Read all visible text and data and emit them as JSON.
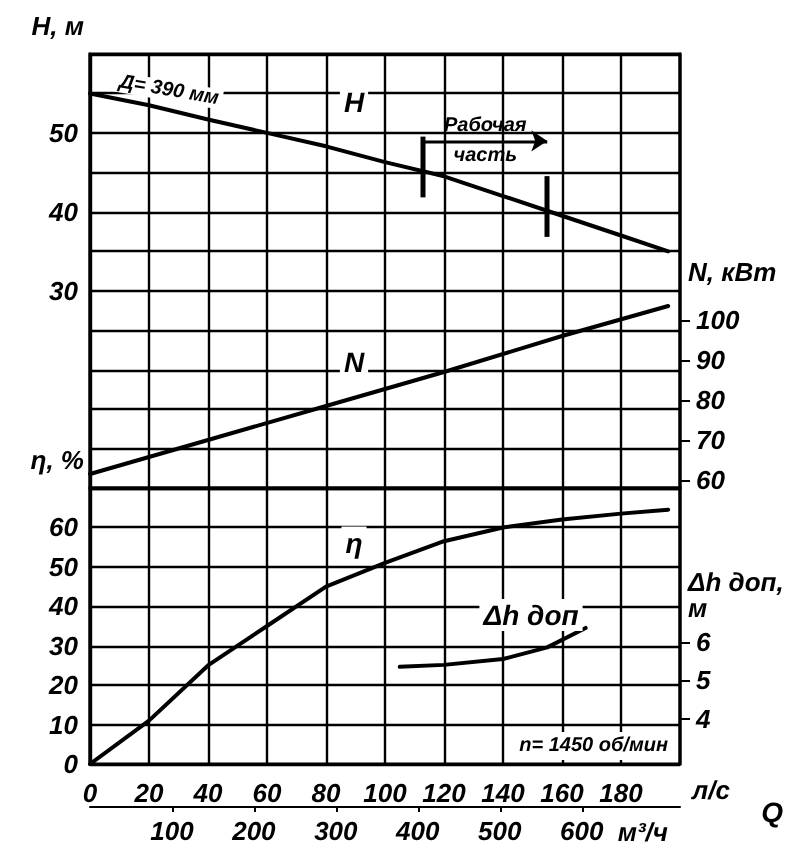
{
  "chart_data": [
    {
      "type": "line",
      "ylabel": "H, м",
      "y2label": "N, кВт",
      "annotations": [
        {
          "text": "Д= 390 мм",
          "x": 0,
          "y": 55
        },
        "Рабочая часть"
      ],
      "xlim": [
        0,
        200
      ],
      "xticks": [
        0,
        20,
        40,
        60,
        80,
        100,
        120,
        140,
        160,
        180
      ],
      "tick_labels": "y",
      "ylim": [
        5,
        60
      ],
      "yticks": [
        {
          "value": 5,
          "label": null
        },
        {
          "value": 10,
          "label": null
        },
        {
          "value": 15,
          "label": null
        },
        {
          "value": 20,
          "label": null
        },
        {
          "value": 25,
          "label": null
        },
        30,
        {
          "value": 35,
          "label": null
        },
        40,
        {
          "value": 45,
          "label": null
        },
        50,
        {
          "value": 55,
          "label": null
        },
        {
          "value": 60,
          "label": null
        }
      ],
      "y2lim": [
        58,
        166.5
      ],
      "y2ticks": [
        60,
        70,
        80,
        90,
        100
      ],
      "ref_lines": [
        {
          "axis": "x",
          "value": 113,
          "color": "#000000"
        },
        {
          "axis": "x",
          "value": 155,
          "color": "#000000"
        }
      ],
      "grid": true,
      "legend": false,
      "marker": "none",
      "line_style": "solid",
      "series": [
        {
          "name": "H",
          "color": "#000000",
          "x": [
            0,
            20,
            40,
            60,
            80,
            100,
            120,
            140,
            160,
            180,
            196
          ],
          "values": [
            55,
            53.5,
            51.7,
            50,
            48.3,
            46.3,
            44.5,
            42,
            39.5,
            37,
            35
          ]
        },
        {
          "name": "N",
          "color": "#000000",
          "axis": "y2",
          "x": [
            0,
            40,
            80,
            120,
            160,
            196
          ],
          "values": [
            61.5,
            70,
            78.5,
            87,
            96,
            103.5
          ]
        }
      ]
    },
    {
      "type": "line",
      "ylabel": "η, %",
      "y2label": "Δh доп, м",
      "xlabel": "л/с",
      "x2label": "м³/ч",
      "annotations": [
        "Q",
        "n= 1450 об/мин"
      ],
      "xlim": [
        0,
        200
      ],
      "xticks": [
        0,
        20,
        40,
        60,
        80,
        100,
        120,
        140,
        160,
        180
      ],
      "x2lim": [
        0,
        720
      ],
      "x2ticks": [
        100,
        200,
        300,
        400,
        500,
        600
      ],
      "ylim": [
        0,
        70
      ],
      "yticks": [
        0,
        10,
        20,
        30,
        40,
        50,
        60,
        {
          "value": 70,
          "label": null
        }
      ],
      "y2lim": [
        2.85,
        9.95
      ],
      "y2ticks": [
        4,
        5,
        6
      ],
      "grid": true,
      "legend": false,
      "marker": "none",
      "line_style": "solid",
      "series": [
        {
          "name": "η",
          "color": "#000000",
          "x": [
            0,
            20,
            40,
            60,
            80,
            100,
            120,
            140,
            160,
            180,
            196
          ],
          "values": [
            0,
            11,
            25,
            35,
            45,
            51,
            56.5,
            60,
            62,
            63.5,
            64.5
          ]
        },
        {
          "name": "Δh доп",
          "color": "#000000",
          "axis": "y2",
          "x": [
            105,
            120,
            140,
            155,
            168
          ],
          "values": [
            5.35,
            5.4,
            5.55,
            5.85,
            6.35
          ]
        }
      ]
    }
  ]
}
